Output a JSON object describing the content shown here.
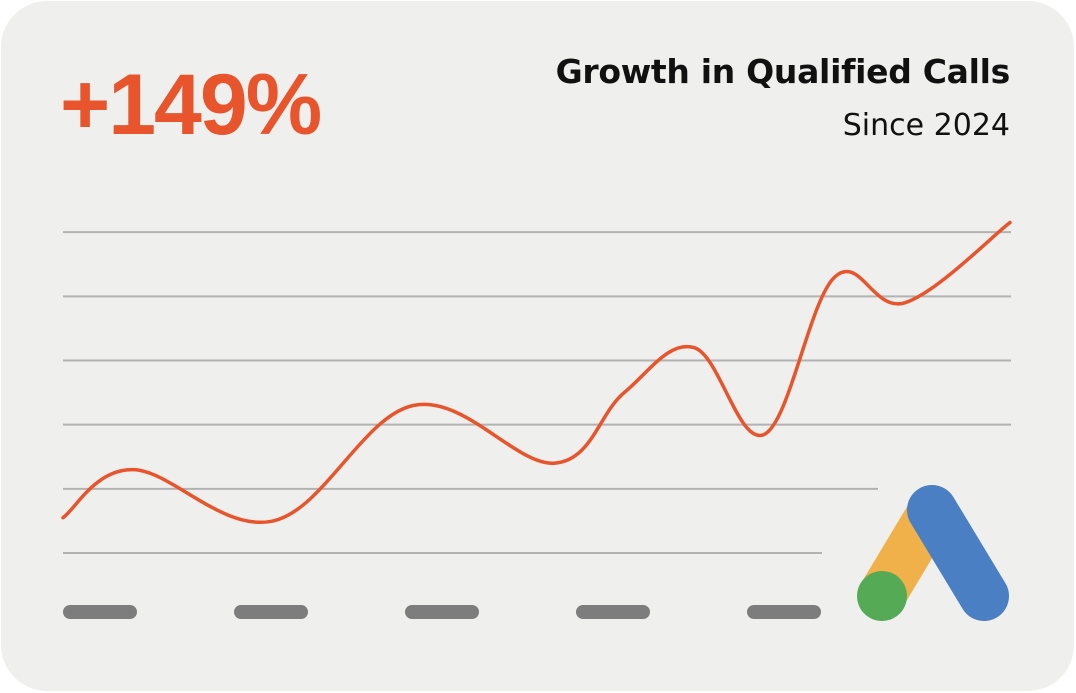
{
  "headline": {
    "value": "+149%"
  },
  "colors": {
    "accent": "#e8542b",
    "grid": "#b2b2b2",
    "tick": "#7d7d7d",
    "background": "#efefee",
    "logo_yellow": "#f0b04a",
    "logo_blue": "#4a7fc3",
    "logo_green": "#55ab55"
  },
  "chart_data": {
    "type": "line",
    "title": "Growth in Qualified Calls",
    "subtitle": "Since 2024",
    "xlabel": "",
    "ylabel": "",
    "grid": true,
    "x_tick_labels": [
      "",
      "",
      "",
      "",
      ""
    ],
    "series": [
      {
        "values": [
          0.55,
          1.3,
          0.5,
          2.3,
          1.4,
          2.5,
          3.2,
          1.85,
          4.3,
          3.9,
          5.15
        ]
      }
    ],
    "x": [
      0,
      1,
      3,
      5,
      7,
      8,
      9,
      10,
      11,
      12,
      13.5
    ],
    "xlim": [
      0,
      13.5
    ],
    "ylim": [
      0,
      6
    ]
  },
  "logo": {
    "icon": "google-ads-logo-icon"
  }
}
